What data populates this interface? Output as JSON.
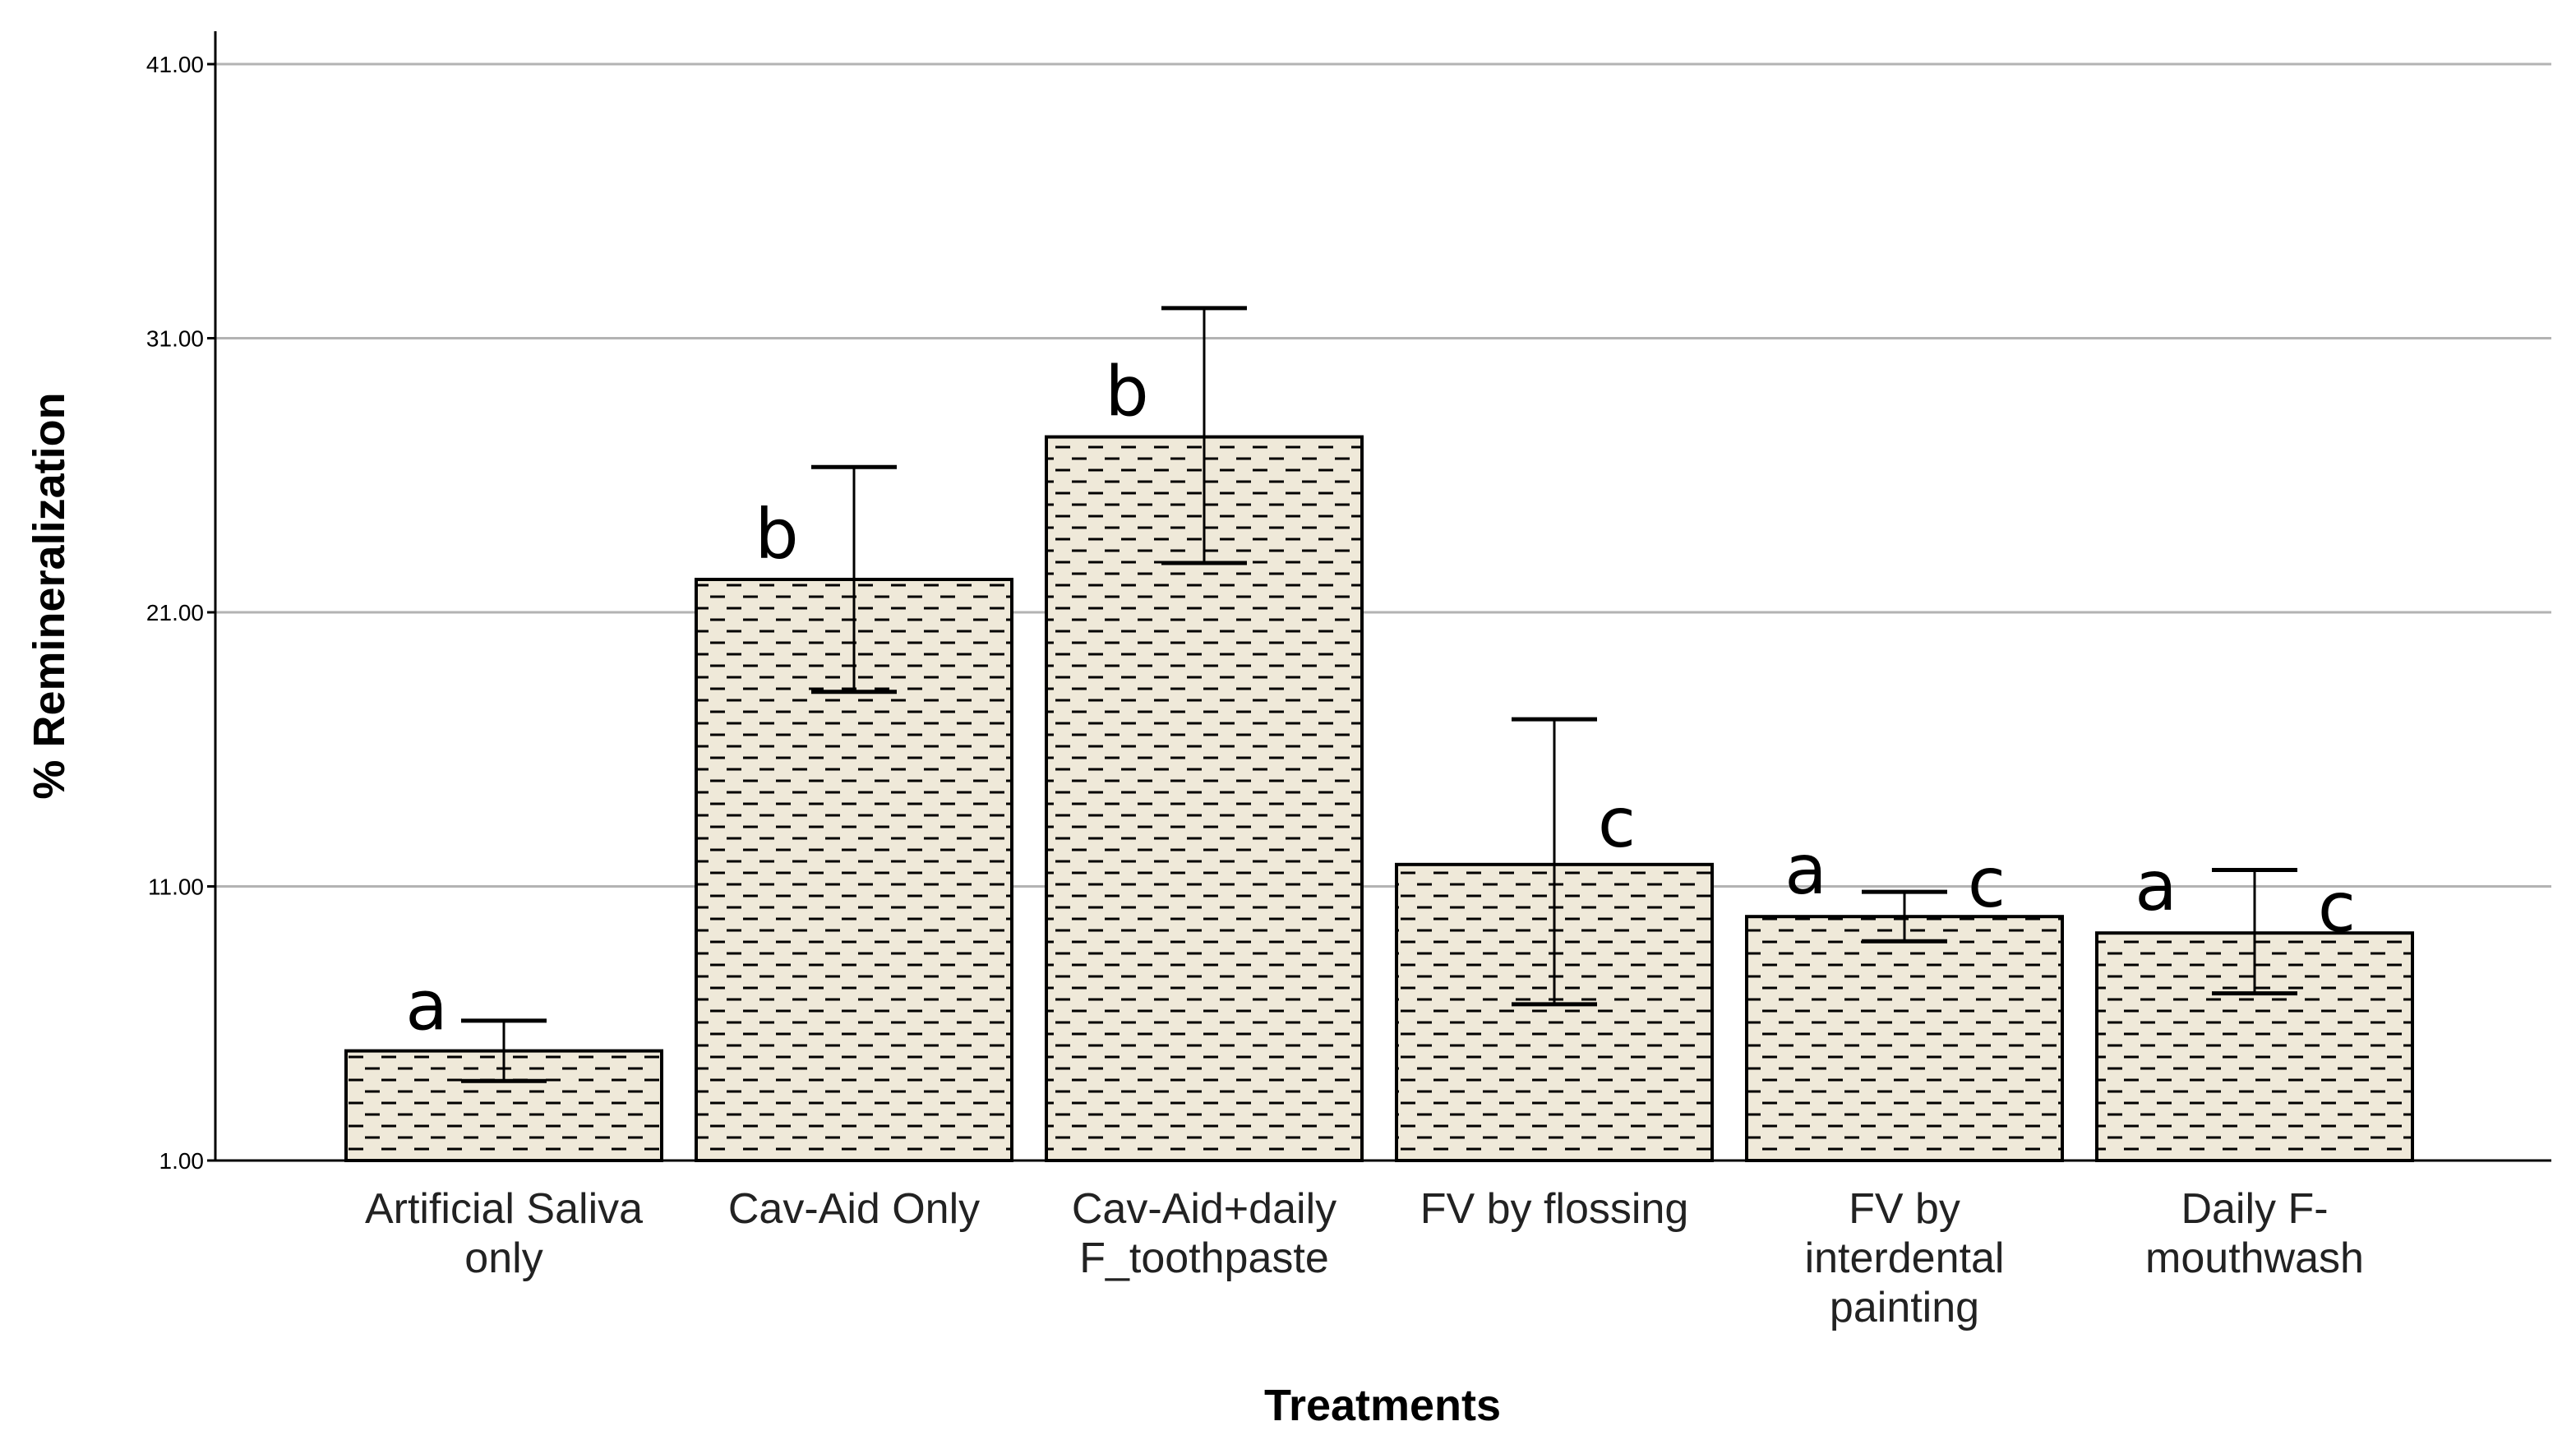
{
  "chart_data": {
    "type": "bar",
    "title": "",
    "xlabel": "Treatments",
    "ylabel": "% Remineralization",
    "ylim": [
      1.0,
      42.2
    ],
    "y_ticks": [
      "1.00",
      "11.00",
      "21.00",
      "31.00",
      "41.00"
    ],
    "grid": "horizontal",
    "categories": [
      [
        "Artificial Saliva",
        "only"
      ],
      [
        "Cav-Aid Only"
      ],
      [
        "Cav-Aid+daily",
        "F_toothpaste"
      ],
      [
        "FV by flossing"
      ],
      [
        "FV by",
        "interdental",
        "painting"
      ],
      [
        "Daily F-",
        "mouthwash"
      ]
    ],
    "values": [
      5.0,
      22.2,
      27.4,
      11.8,
      9.9,
      9.3
    ],
    "error_low": [
      3.9,
      18.1,
      22.8,
      6.7,
      9.0,
      7.1
    ],
    "error_high": [
      6.1,
      26.3,
      32.1,
      17.1,
      10.8,
      11.6
    ],
    "significance": [
      [
        "a"
      ],
      [
        "b"
      ],
      [
        "b"
      ],
      [
        "c"
      ],
      [
        "a",
        "c"
      ],
      [
        "a",
        "c"
      ]
    ],
    "bar_fill": "#efe9d9",
    "bar_pattern": "horizontal dashes",
    "grid_color": "#b3b3b3"
  }
}
